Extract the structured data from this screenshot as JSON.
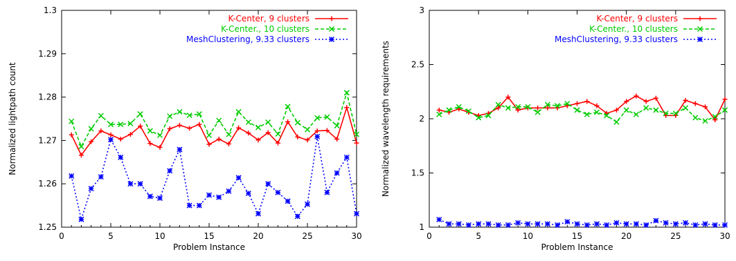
{
  "chart_data": [
    {
      "type": "line",
      "xlabel": "Problem Instance",
      "ylabel": "Normalized lightpath count",
      "xlim": [
        0,
        30
      ],
      "ylim": [
        1.25,
        1.3
      ],
      "xticks": [
        "0",
        "5",
        "10",
        "15",
        "20",
        "25",
        "30"
      ],
      "yticks": [
        "1.25",
        "1.26",
        "1.27",
        "1.28",
        "1.29",
        "1.3"
      ],
      "legend_position": "top-right",
      "grid": false,
      "x": [
        1,
        2,
        3,
        4,
        5,
        6,
        7,
        8,
        9,
        10,
        11,
        12,
        13,
        14,
        15,
        16,
        17,
        18,
        19,
        20,
        21,
        22,
        23,
        24,
        25,
        26,
        27,
        28,
        29,
        30
      ],
      "series": [
        {
          "name": "K-Center, 9 clusters",
          "color": "#ff0000",
          "style": "solid",
          "marker": "plus",
          "values": [
            1.2713,
            1.2666,
            1.2697,
            1.2722,
            1.2713,
            1.2703,
            1.2714,
            1.2733,
            1.2693,
            1.2684,
            1.2727,
            1.2735,
            1.2728,
            1.2737,
            1.2691,
            1.2703,
            1.2692,
            1.2729,
            1.2717,
            1.2701,
            1.2718,
            1.2694,
            1.2743,
            1.2708,
            1.2701,
            1.2722,
            1.2723,
            1.2703,
            1.2776,
            1.2694
          ]
        },
        {
          "name": "K-Center., 10 clusters",
          "color": "#00cc00",
          "style": "dashed",
          "marker": "cross",
          "values": [
            1.2744,
            1.2686,
            1.2727,
            1.2757,
            1.2737,
            1.2737,
            1.2739,
            1.2761,
            1.2722,
            1.2712,
            1.2756,
            1.2766,
            1.2758,
            1.2761,
            1.2712,
            1.2746,
            1.2714,
            1.2766,
            1.2742,
            1.273,
            1.2742,
            1.2715,
            1.2778,
            1.2741,
            1.2725,
            1.2752,
            1.2754,
            1.2734,
            1.281,
            1.2714
          ]
        },
        {
          "name": "MeshClustering, 9.33 clusters",
          "color": "#0000ff",
          "style": "dotted",
          "marker": "star",
          "values": [
            1.2618,
            1.2518,
            1.2589,
            1.2616,
            1.2702,
            1.2661,
            1.26,
            1.26,
            1.2571,
            1.2567,
            1.263,
            1.2679,
            1.255,
            1.255,
            1.2574,
            1.2569,
            1.2583,
            1.2614,
            1.2578,
            1.2531,
            1.26,
            1.258,
            1.256,
            1.2525,
            1.2553,
            1.2709,
            1.258,
            1.2625,
            1.2661,
            1.2531
          ]
        }
      ]
    },
    {
      "type": "line",
      "xlabel": "Problem Instance",
      "ylabel": "Normalized wavelength requirements",
      "xlim": [
        0,
        30
      ],
      "ylim": [
        1,
        3
      ],
      "xticks": [
        "0",
        "5",
        "10",
        "15",
        "20",
        "25",
        "30"
      ],
      "yticks": [
        "1",
        "1.5",
        "2",
        "2.5",
        "3"
      ],
      "legend_position": "top-right",
      "grid": false,
      "x": [
        1,
        2,
        3,
        4,
        5,
        6,
        7,
        8,
        9,
        10,
        11,
        12,
        13,
        14,
        15,
        16,
        17,
        18,
        19,
        20,
        21,
        22,
        23,
        24,
        25,
        26,
        27,
        28,
        29,
        30
      ],
      "series": [
        {
          "name": "K-Center, 9 clusters",
          "color": "#ff0000",
          "style": "solid",
          "marker": "plus",
          "values": [
            2.08,
            2.06,
            2.09,
            2.06,
            2.03,
            2.05,
            2.1,
            2.2,
            2.08,
            2.1,
            2.1,
            2.1,
            2.1,
            2.12,
            2.14,
            2.16,
            2.12,
            2.05,
            2.08,
            2.16,
            2.21,
            2.16,
            2.19,
            2.03,
            2.03,
            2.17,
            2.14,
            2.11,
            1.99,
            2.18
          ]
        },
        {
          "name": "K-Center., 10 clusters",
          "color": "#00cc00",
          "style": "dashed",
          "marker": "cross",
          "values": [
            2.04,
            2.08,
            2.11,
            2.07,
            2.01,
            2.03,
            2.13,
            2.1,
            2.11,
            2.11,
            2.06,
            2.13,
            2.12,
            2.14,
            2.08,
            2.04,
            2.06,
            2.03,
            1.97,
            2.08,
            2.04,
            2.1,
            2.08,
            2.05,
            2.05,
            2.1,
            2.01,
            1.98,
            2.02,
            2.08
          ]
        },
        {
          "name": "MeshClustering, 9.33 clusters",
          "color": "#0000ff",
          "style": "dotted",
          "marker": "star",
          "values": [
            1.07,
            1.03,
            1.03,
            1.02,
            1.03,
            1.03,
            1.02,
            1.02,
            1.04,
            1.03,
            1.03,
            1.03,
            1.02,
            1.05,
            1.03,
            1.02,
            1.03,
            1.02,
            1.04,
            1.03,
            1.03,
            1.02,
            1.06,
            1.04,
            1.03,
            1.04,
            1.02,
            1.03,
            1.02,
            1.02
          ]
        }
      ]
    }
  ]
}
